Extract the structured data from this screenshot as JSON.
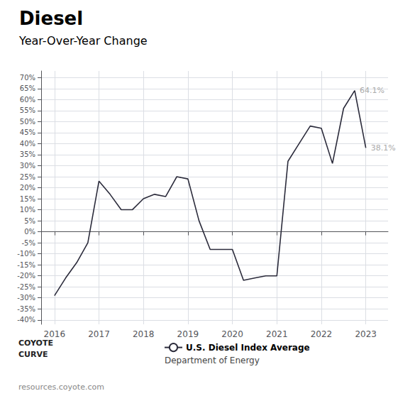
{
  "chart_data": {
    "type": "line",
    "title": "Diesel",
    "subtitle": "Year-Over-Year Change",
    "x": [
      2016.0,
      2016.25,
      2016.5,
      2016.75,
      2017.0,
      2017.25,
      2017.5,
      2017.75,
      2018.0,
      2018.25,
      2018.5,
      2018.75,
      2019.0,
      2019.25,
      2019.5,
      2019.75,
      2020.0,
      2020.25,
      2020.5,
      2020.75,
      2021.0,
      2021.25,
      2021.5,
      2021.75,
      2022.0,
      2022.25,
      2022.5,
      2022.75,
      2023.0
    ],
    "series": [
      {
        "name": "U.S. Diesel Index Average",
        "color": "#2b2b3b",
        "values": [
          -29,
          -21,
          -14,
          -5,
          23,
          17,
          10,
          10,
          15,
          17,
          16,
          25,
          24,
          5,
          -8,
          -8,
          -8,
          -22,
          -21,
          -20,
          -20,
          32,
          40,
          48,
          47,
          31,
          56,
          64.1,
          38.1
        ]
      }
    ],
    "xlim": [
      2015.7,
      2023.5
    ],
    "xticks": [
      2016,
      2017,
      2018,
      2019,
      2020,
      2021,
      2022,
      2023
    ],
    "ylim": [
      -42,
      73
    ],
    "yticks": [
      {
        "value": -40,
        "label": "-40%"
      },
      {
        "value": -35,
        "label": "-35%"
      },
      {
        "value": -30,
        "label": "-30%"
      },
      {
        "value": -25,
        "label": "-25%"
      },
      {
        "value": -20,
        "label": "-20%"
      },
      {
        "value": -15,
        "label": "-15%"
      },
      {
        "value": -10,
        "label": "-10%"
      },
      {
        "value": -5,
        "label": "-5%"
      },
      {
        "value": 0,
        "label": "0%"
      },
      {
        "value": 5,
        "label": "5%"
      },
      {
        "value": 10,
        "label": "10%"
      },
      {
        "value": 15,
        "label": "15%"
      },
      {
        "value": 20,
        "label": "20%"
      },
      {
        "value": 25,
        "label": "25%"
      },
      {
        "value": 30,
        "label": "30%"
      },
      {
        "value": 35,
        "label": "35%"
      },
      {
        "value": 40,
        "label": "40%"
      },
      {
        "value": 45,
        "label": "45%"
      },
      {
        "value": 50,
        "label": "50%"
      },
      {
        "value": 55,
        "label": "55%"
      },
      {
        "value": 60,
        "label": "60%"
      },
      {
        "value": 65,
        "label": "65%"
      },
      {
        "value": 70,
        "label": "70%"
      }
    ],
    "grid": true,
    "legend": "bottom",
    "annotations": [
      {
        "text": "64.1%",
        "x": 2022.8,
        "y": 64.1,
        "color": "#aaaaaa"
      },
      {
        "text": "38.1%",
        "x": 2023.05,
        "y": 38.1,
        "color": "#aaaaaa"
      }
    ],
    "source": "Department of Energy",
    "footer": [
      "COYOTE",
      "CURVE",
      "resources.coyote.com"
    ]
  }
}
